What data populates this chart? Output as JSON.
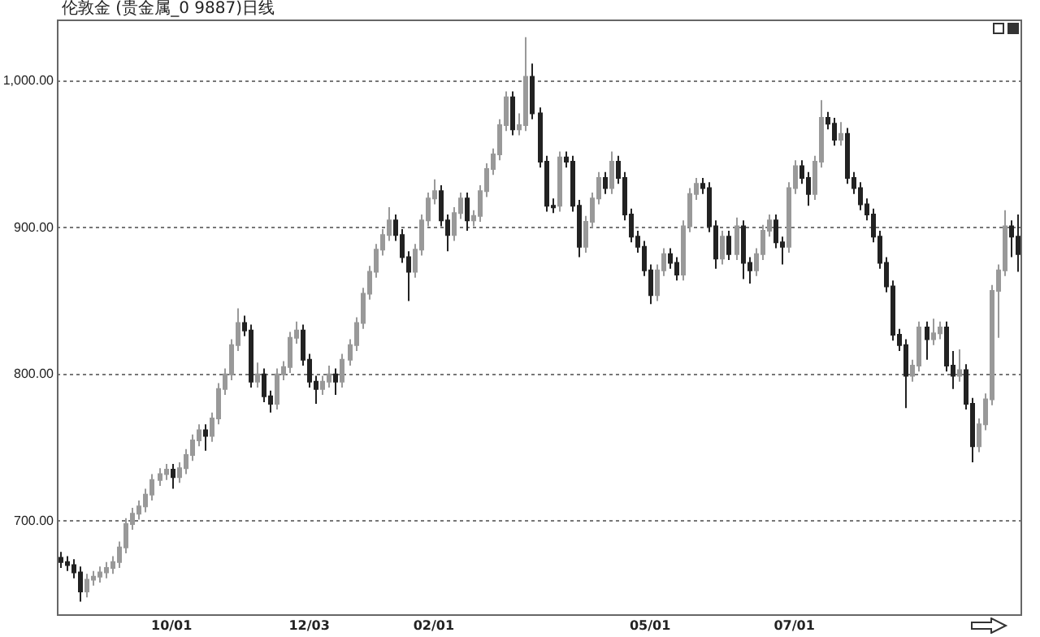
{
  "chart_data": {
    "type": "candlestick",
    "title": "伦敦金 (贵金属_0 9887)日线",
    "categories": [
      null,
      null,
      null,
      null,
      null,
      null,
      null,
      null,
      null,
      null,
      null,
      null,
      null,
      null,
      null,
      null,
      null,
      "10/01",
      null,
      null,
      null,
      null,
      null,
      null,
      null,
      null,
      null,
      null,
      null,
      null,
      null,
      null,
      null,
      null,
      null,
      null,
      null,
      null,
      "12/03",
      null,
      null,
      null,
      null,
      null,
      null,
      null,
      null,
      null,
      null,
      null,
      null,
      null,
      null,
      null,
      null,
      null,
      null,
      "02/01",
      null,
      null,
      null,
      null,
      null,
      null,
      null,
      null,
      null,
      null,
      null,
      null,
      null,
      null,
      null,
      null,
      null,
      null,
      null,
      null,
      null,
      null,
      null,
      null,
      null,
      null,
      null,
      null,
      null,
      null,
      null,
      null,
      "05/01",
      null,
      null,
      null,
      null,
      null,
      null,
      null,
      null,
      null,
      null,
      null,
      null,
      null,
      null,
      null,
      null,
      null,
      null,
      null,
      null,
      null,
      "07/01",
      null,
      null,
      null,
      null,
      null,
      null,
      null,
      null,
      null,
      null,
      null,
      null,
      null,
      null,
      null,
      null,
      null,
      null,
      null,
      null,
      null,
      null,
      null,
      null,
      null,
      null,
      null,
      null,
      null,
      null,
      null,
      null,
      null,
      null
    ],
    "ohlc": [
      [
        675,
        679,
        668,
        672
      ],
      [
        672,
        676,
        666,
        670
      ],
      [
        670,
        674,
        661,
        665
      ],
      [
        665,
        669,
        645,
        652
      ],
      [
        652,
        664,
        648,
        660
      ],
      [
        660,
        666,
        656,
        662
      ],
      [
        662,
        669,
        658,
        665
      ],
      [
        665,
        672,
        661,
        668
      ],
      [
        668,
        676,
        664,
        672
      ],
      [
        672,
        686,
        668,
        682
      ],
      [
        682,
        702,
        678,
        698
      ],
      [
        698,
        709,
        694,
        705
      ],
      [
        705,
        714,
        701,
        710
      ],
      [
        710,
        722,
        706,
        718
      ],
      [
        718,
        732,
        714,
        728
      ],
      [
        728,
        736,
        724,
        732
      ],
      [
        732,
        739,
        728,
        735
      ],
      [
        735,
        739,
        722,
        730
      ],
      [
        730,
        740,
        726,
        736
      ],
      [
        736,
        749,
        732,
        745
      ],
      [
        745,
        759,
        741,
        755
      ],
      [
        755,
        766,
        751,
        762
      ],
      [
        762,
        766,
        748,
        758
      ],
      [
        758,
        774,
        754,
        770
      ],
      [
        770,
        794,
        766,
        790
      ],
      [
        790,
        804,
        786,
        800
      ],
      [
        800,
        824,
        796,
        820
      ],
      [
        820,
        845,
        816,
        835
      ],
      [
        835,
        840,
        826,
        830
      ],
      [
        830,
        834,
        791,
        795
      ],
      [
        795,
        808,
        791,
        800
      ],
      [
        800,
        804,
        781,
        785
      ],
      [
        785,
        789,
        774,
        780
      ],
      [
        780,
        804,
        776,
        800
      ],
      [
        800,
        809,
        796,
        805
      ],
      [
        805,
        829,
        801,
        825
      ],
      [
        825,
        836,
        821,
        830
      ],
      [
        830,
        834,
        806,
        810
      ],
      [
        810,
        814,
        791,
        795
      ],
      [
        795,
        799,
        780,
        790
      ],
      [
        790,
        799,
        786,
        795
      ],
      [
        795,
        806,
        791,
        800
      ],
      [
        800,
        804,
        786,
        795
      ],
      [
        795,
        814,
        791,
        810
      ],
      [
        810,
        824,
        806,
        820
      ],
      [
        820,
        839,
        816,
        835
      ],
      [
        835,
        859,
        831,
        855
      ],
      [
        855,
        874,
        851,
        870
      ],
      [
        870,
        889,
        866,
        885
      ],
      [
        885,
        899,
        881,
        895
      ],
      [
        895,
        914,
        891,
        905
      ],
      [
        905,
        909,
        891,
        895
      ],
      [
        895,
        899,
        876,
        880
      ],
      [
        880,
        884,
        850,
        870
      ],
      [
        870,
        889,
        866,
        885
      ],
      [
        885,
        909,
        881,
        905
      ],
      [
        905,
        924,
        901,
        920
      ],
      [
        920,
        933,
        916,
        925
      ],
      [
        925,
        929,
        901,
        905
      ],
      [
        905,
        909,
        884,
        895
      ],
      [
        895,
        914,
        891,
        910
      ],
      [
        910,
        924,
        906,
        920
      ],
      [
        920,
        924,
        898,
        905
      ],
      [
        905,
        912,
        901,
        908
      ],
      [
        908,
        929,
        904,
        925
      ],
      [
        925,
        944,
        921,
        940
      ],
      [
        940,
        954,
        936,
        950
      ],
      [
        950,
        974,
        946,
        970
      ],
      [
        970,
        993,
        966,
        989
      ],
      [
        989,
        993,
        963,
        967
      ],
      [
        967,
        978,
        963,
        970
      ],
      [
        970,
        1030,
        966,
        1003
      ],
      [
        1003,
        1012,
        974,
        978
      ],
      [
        978,
        982,
        941,
        945
      ],
      [
        945,
        949,
        911,
        915
      ],
      [
        915,
        920,
        910,
        915
      ],
      [
        915,
        952,
        911,
        948
      ],
      [
        948,
        952,
        941,
        945
      ],
      [
        945,
        949,
        911,
        915
      ],
      [
        915,
        919,
        880,
        887
      ],
      [
        887,
        908,
        883,
        904
      ],
      [
        904,
        924,
        900,
        920
      ],
      [
        920,
        938,
        916,
        934
      ],
      [
        934,
        938,
        923,
        927
      ],
      [
        927,
        952,
        923,
        945
      ],
      [
        945,
        949,
        930,
        934
      ],
      [
        934,
        938,
        905,
        909
      ],
      [
        909,
        913,
        890,
        894
      ],
      [
        894,
        898,
        883,
        887
      ],
      [
        887,
        891,
        867,
        871
      ],
      [
        871,
        875,
        848,
        854
      ],
      [
        854,
        875,
        850,
        871
      ],
      [
        871,
        886,
        867,
        882
      ],
      [
        882,
        886,
        872,
        876
      ],
      [
        876,
        880,
        864,
        868
      ],
      [
        868,
        905,
        864,
        901
      ],
      [
        901,
        927,
        897,
        923
      ],
      [
        923,
        934,
        919,
        930
      ],
      [
        930,
        934,
        923,
        927
      ],
      [
        927,
        931,
        897,
        901
      ],
      [
        901,
        905,
        872,
        879
      ],
      [
        879,
        898,
        875,
        894
      ],
      [
        894,
        898,
        878,
        882
      ],
      [
        882,
        907,
        878,
        901
      ],
      [
        901,
        905,
        865,
        876
      ],
      [
        876,
        880,
        862,
        871
      ],
      [
        871,
        886,
        867,
        882
      ],
      [
        882,
        902,
        878,
        898
      ],
      [
        898,
        909,
        894,
        905
      ],
      [
        905,
        909,
        886,
        890
      ],
      [
        890,
        894,
        875,
        887
      ],
      [
        887,
        931,
        883,
        927
      ],
      [
        927,
        946,
        923,
        942
      ],
      [
        942,
        946,
        930,
        934
      ],
      [
        934,
        938,
        915,
        923
      ],
      [
        923,
        949,
        919,
        945
      ],
      [
        945,
        987,
        941,
        975
      ],
      [
        975,
        979,
        967,
        971
      ],
      [
        971,
        975,
        956,
        960
      ],
      [
        960,
        972,
        956,
        964
      ],
      [
        964,
        968,
        930,
        934
      ],
      [
        934,
        938,
        923,
        927
      ],
      [
        927,
        931,
        912,
        916
      ],
      [
        916,
        920,
        905,
        909
      ],
      [
        909,
        913,
        890,
        894
      ],
      [
        894,
        898,
        872,
        876
      ],
      [
        876,
        880,
        856,
        860
      ],
      [
        860,
        864,
        823,
        827
      ],
      [
        827,
        831,
        816,
        820
      ],
      [
        820,
        824,
        777,
        799
      ],
      [
        799,
        810,
        795,
        806
      ],
      [
        806,
        836,
        802,
        832
      ],
      [
        832,
        836,
        810,
        824
      ],
      [
        824,
        838,
        820,
        828
      ],
      [
        828,
        836,
        824,
        832
      ],
      [
        832,
        836,
        802,
        806
      ],
      [
        806,
        816,
        790,
        799
      ],
      [
        799,
        817,
        795,
        803
      ],
      [
        803,
        807,
        776,
        780
      ],
      [
        780,
        784,
        740,
        751
      ],
      [
        751,
        770,
        747,
        766
      ],
      [
        766,
        787,
        762,
        783
      ],
      [
        783,
        861,
        779,
        857
      ],
      [
        857,
        875,
        825,
        871
      ],
      [
        871,
        912,
        867,
        901
      ],
      [
        901,
        905,
        880,
        894
      ],
      [
        894,
        909,
        870,
        882
      ]
    ],
    "colors": [
      "#222222",
      "#222222",
      "#222222",
      "#222222",
      "#999999",
      "#999999",
      "#999999",
      "#999999",
      "#999999",
      "#999999",
      "#999999",
      "#999999",
      "#999999",
      "#999999",
      "#999999",
      "#999999",
      "#999999",
      "#222222",
      "#999999",
      "#999999",
      "#999999",
      "#999999",
      "#222222",
      "#999999",
      "#999999",
      "#999999",
      "#999999",
      "#999999",
      "#222222",
      "#222222",
      "#999999",
      "#222222",
      "#222222",
      "#999999",
      "#999999",
      "#999999",
      "#999999",
      "#222222",
      "#222222",
      "#222222",
      "#999999",
      "#999999",
      "#222222",
      "#999999",
      "#999999",
      "#999999",
      "#999999",
      "#999999",
      "#999999",
      "#999999",
      "#999999",
      "#222222",
      "#222222",
      "#222222",
      "#999999",
      "#999999",
      "#999999",
      "#999999",
      "#222222",
      "#222222",
      "#999999",
      "#999999",
      "#222222",
      "#999999",
      "#999999",
      "#999999",
      "#999999",
      "#999999",
      "#999999",
      "#222222",
      "#999999",
      "#999999",
      "#222222",
      "#222222",
      "#222222",
      "#222222",
      "#999999",
      "#222222",
      "#222222",
      "#222222",
      "#999999",
      "#999999",
      "#999999",
      "#222222",
      "#999999",
      "#222222",
      "#222222",
      "#222222",
      "#222222",
      "#222222",
      "#222222",
      "#999999",
      "#999999",
      "#222222",
      "#222222",
      "#999999",
      "#999999",
      "#999999",
      "#222222",
      "#222222",
      "#222222",
      "#999999",
      "#222222",
      "#999999",
      "#222222",
      "#222222",
      "#999999",
      "#999999",
      "#999999",
      "#222222",
      "#222222",
      "#999999",
      "#999999",
      "#222222",
      "#222222",
      "#999999",
      "#999999",
      "#222222",
      "#222222",
      "#999999",
      "#222222",
      "#222222",
      "#222222",
      "#222222",
      "#222222",
      "#222222",
      "#222222",
      "#222222",
      "#222222",
      "#222222",
      "#999999",
      "#999999",
      "#222222",
      "#999999",
      "#999999",
      "#222222",
      "#222222",
      "#999999",
      "#222222",
      "#222222",
      "#999999",
      "#999999",
      "#999999",
      "#999999",
      "#999999",
      "#222222",
      "#222222"
    ],
    "ylim": [
      636,
      1042
    ],
    "yticks": [
      {
        "value": 700,
        "label": "700.00"
      },
      {
        "value": 800,
        "label": "800.00"
      },
      {
        "value": 900,
        "label": "900.00"
      },
      {
        "value": 1000,
        "label": "1,000.00"
      }
    ],
    "grid": "y",
    "legend": false
  }
}
